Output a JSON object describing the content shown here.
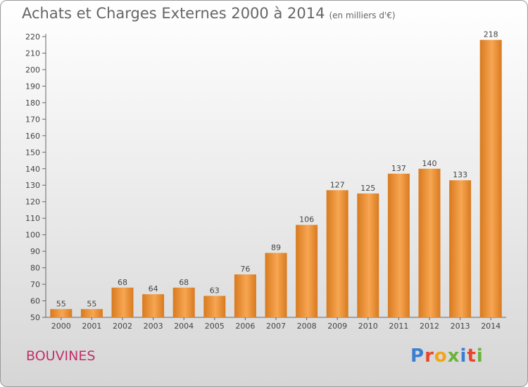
{
  "header": {
    "title": "Achats et Charges Externes 2000 à 2014",
    "unit": "(en milliers d'€)"
  },
  "footer": {
    "commune": "BOUVINES",
    "brand": "Proxiti"
  },
  "colors": {
    "bar_light": "#f7a652",
    "bar_dark": "#d87a1f",
    "commune_text": "#c0306a",
    "brand_letters": [
      "#3a7fd0",
      "#e8462c",
      "#f2a517",
      "#6ab33c",
      "#3a7fd0",
      "#e8462c",
      "#6ab33c"
    ]
  },
  "chart_data": {
    "type": "bar",
    "title": "Achats et Charges Externes 2000 à 2014",
    "subtitle": "(en milliers d'€)",
    "categories": [
      "2000",
      "2001",
      "2002",
      "2003",
      "2004",
      "2005",
      "2006",
      "2007",
      "2008",
      "2009",
      "2010",
      "2011",
      "2012",
      "2013",
      "2014"
    ],
    "values": [
      55,
      55,
      68,
      64,
      68,
      63,
      76,
      89,
      106,
      127,
      125,
      137,
      140,
      133,
      218
    ],
    "ylim": [
      50,
      220
    ],
    "yticks": [
      50,
      60,
      70,
      80,
      90,
      100,
      110,
      120,
      130,
      140,
      150,
      160,
      170,
      180,
      190,
      200,
      210,
      220
    ],
    "grid": false,
    "data_labels": true
  }
}
